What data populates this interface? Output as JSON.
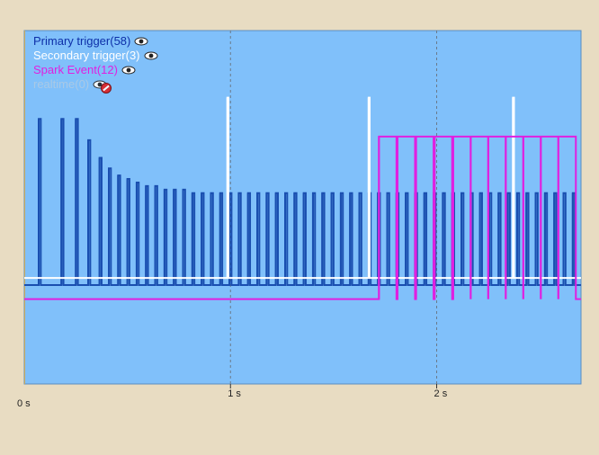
{
  "chart_data": {
    "type": "line",
    "xlabel": "",
    "ylabel": "",
    "xlim": [
      0,
      2.7
    ],
    "x_ticks": [
      {
        "value": 0,
        "label": "0 s"
      },
      {
        "value": 1,
        "label": "1 s"
      },
      {
        "value": 2,
        "label": "2 s"
      }
    ],
    "grid": "vertical dashed at 1 s and 2 s",
    "legend_position": "top-left",
    "colors": {
      "plot_background": "#80c0fa",
      "page_background": "#e8dcc2",
      "primary": "#1a4fb0",
      "secondary": "#ffffff",
      "spark": "#e020e0",
      "realtime": "#a9c9e6"
    },
    "series": [
      {
        "name": "Primary trigger(58)",
        "legend_color": "#0d2fa8",
        "visible": true,
        "visibility_icon": "eye-icon",
        "baseline_level": 0.28,
        "pulse_width_s": 0.01,
        "pulses": [
          {
            "t": 0.07,
            "h": 0.75
          },
          {
            "t": 0.18,
            "h": 0.75
          },
          {
            "t": 0.25,
            "h": 0.75
          },
          {
            "t": 0.31,
            "h": 0.69
          },
          {
            "t": 0.365,
            "h": 0.64
          },
          {
            "t": 0.41,
            "h": 0.61
          },
          {
            "t": 0.455,
            "h": 0.59
          },
          {
            "t": 0.5,
            "h": 0.58
          },
          {
            "t": 0.545,
            "h": 0.57
          },
          {
            "t": 0.59,
            "h": 0.56
          },
          {
            "t": 0.635,
            "h": 0.56
          },
          {
            "t": 0.68,
            "h": 0.55
          },
          {
            "t": 0.725,
            "h": 0.55
          },
          {
            "t": 0.77,
            "h": 0.55
          },
          {
            "t": 0.815,
            "h": 0.54
          },
          {
            "t": 0.86,
            "h": 0.54
          },
          {
            "t": 0.905,
            "h": 0.54
          },
          {
            "t": 0.95,
            "h": 0.54
          },
          {
            "t": 0.995,
            "h": 0.54
          },
          {
            "t": 1.04,
            "h": 0.54
          },
          {
            "t": 1.085,
            "h": 0.54
          },
          {
            "t": 1.13,
            "h": 0.54
          },
          {
            "t": 1.175,
            "h": 0.54
          },
          {
            "t": 1.22,
            "h": 0.54
          },
          {
            "t": 1.265,
            "h": 0.54
          },
          {
            "t": 1.31,
            "h": 0.54
          },
          {
            "t": 1.355,
            "h": 0.54
          },
          {
            "t": 1.4,
            "h": 0.54
          },
          {
            "t": 1.445,
            "h": 0.54
          },
          {
            "t": 1.49,
            "h": 0.54
          },
          {
            "t": 1.535,
            "h": 0.54
          },
          {
            "t": 1.58,
            "h": 0.54
          },
          {
            "t": 1.625,
            "h": 0.54
          },
          {
            "t": 1.67,
            "h": 0.54
          },
          {
            "t": 1.715,
            "h": 0.54
          },
          {
            "t": 1.76,
            "h": 0.54
          },
          {
            "t": 1.805,
            "h": 0.54
          },
          {
            "t": 1.85,
            "h": 0.54
          },
          {
            "t": 1.895,
            "h": 0.54
          },
          {
            "t": 1.94,
            "h": 0.54
          },
          {
            "t": 1.985,
            "h": 0.54
          },
          {
            "t": 2.03,
            "h": 0.54
          },
          {
            "t": 2.075,
            "h": 0.54
          },
          {
            "t": 2.12,
            "h": 0.54
          },
          {
            "t": 2.165,
            "h": 0.54
          },
          {
            "t": 2.21,
            "h": 0.54
          },
          {
            "t": 2.255,
            "h": 0.54
          },
          {
            "t": 2.3,
            "h": 0.54
          },
          {
            "t": 2.345,
            "h": 0.54
          },
          {
            "t": 2.39,
            "h": 0.54
          },
          {
            "t": 2.435,
            "h": 0.54
          },
          {
            "t": 2.48,
            "h": 0.54
          },
          {
            "t": 2.525,
            "h": 0.54
          },
          {
            "t": 2.57,
            "h": 0.54
          },
          {
            "t": 2.615,
            "h": 0.54
          },
          {
            "t": 2.66,
            "h": 0.54
          }
        ]
      },
      {
        "name": "Secondary trigger(3)",
        "legend_color": "#ffffff",
        "visible": true,
        "visibility_icon": "eye-icon",
        "baseline_level": 0.3,
        "pulse_width_s": 0.005,
        "pulses": [
          {
            "t": 0.985,
            "h": 0.81
          },
          {
            "t": 1.67,
            "h": 0.81
          },
          {
            "t": 2.37,
            "h": 0.81
          }
        ]
      },
      {
        "name": "Spark Event(12)",
        "legend_color": "#e020e0",
        "visible": true,
        "visibility_icon": "eye-icon",
        "baseline_level": 0.24,
        "pulse_width_s": 0.085,
        "pulses": [
          {
            "t": 1.72,
            "h": 0.7
          },
          {
            "t": 1.81,
            "h": 0.7
          },
          {
            "t": 1.9,
            "h": 0.7
          },
          {
            "t": 1.99,
            "h": 0.7
          },
          {
            "t": 2.08,
            "h": 0.7
          },
          {
            "t": 2.165,
            "h": 0.7
          },
          {
            "t": 2.25,
            "h": 0.7
          },
          {
            "t": 2.335,
            "h": 0.7
          },
          {
            "t": 2.42,
            "h": 0.7
          },
          {
            "t": 2.505,
            "h": 0.7
          },
          {
            "t": 2.59,
            "h": 0.7
          }
        ]
      },
      {
        "name": "realtime(0)",
        "legend_color": "#a9c9e6",
        "visible": false,
        "visibility_icon": "eye-hidden-icon",
        "baseline_level": null,
        "pulse_width_s": 0,
        "pulses": []
      }
    ]
  }
}
